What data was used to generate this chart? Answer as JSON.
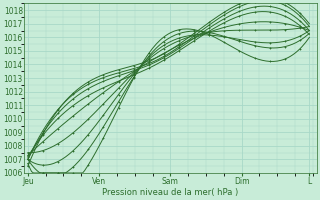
{
  "title": "",
  "xlabel": "Pression niveau de la mer( hPa )",
  "background_color": "#c8ecd8",
  "grid_color": "#a8d8c8",
  "line_color": "#2d6e2d",
  "xtick_labels": [
    "Jeu",
    "Ven",
    "Sam",
    "Dim",
    "L"
  ],
  "xtick_positions": [
    0.0,
    1.0,
    2.0,
    3.0,
    3.95
  ],
  "ylim": [
    1006,
    1018.5
  ],
  "xlim": [
    -0.05,
    4.05
  ],
  "ytick_start": 1006,
  "ytick_end": 1018,
  "n_lines": 9
}
